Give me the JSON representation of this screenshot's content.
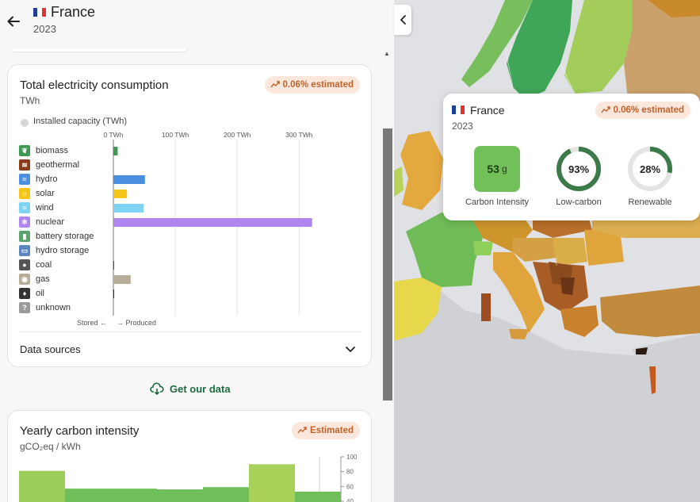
{
  "header": {
    "country": "France",
    "year": "2023"
  },
  "consumption_card": {
    "title": "Total electricity consumption",
    "unit": "TWh",
    "badge": "0.06% estimated",
    "installed_capacity_label": "Installed capacity (TWh)",
    "stored_label": "Stored",
    "produced_label": "Produced",
    "data_sources_label": "Data sources"
  },
  "get_data_label": "Get our data",
  "yearly_card": {
    "title": "Yearly carbon intensity",
    "unit": "gCO₂eq / kWh",
    "badge": "Estimated"
  },
  "tooltip": {
    "country": "France",
    "year": "2023",
    "badge": "0.06% estimated",
    "carbon_intensity_value": "53",
    "carbon_intensity_unit": "g",
    "carbon_intensity_label": "Carbon Intensity",
    "low_carbon_value": "93%",
    "low_carbon_fraction": 0.93,
    "low_carbon_label": "Low-carbon",
    "renewable_value": "28%",
    "renewable_fraction": 0.28,
    "renewable_label": "Renewable"
  },
  "colors": {
    "accent_green": "#1d6b3f",
    "badge_bg": "#fbe7dc",
    "badge_text": "#c0622a",
    "carbon_intensity_box": "#72c05a"
  },
  "chart_data": [
    {
      "type": "bar",
      "title": "Total electricity consumption",
      "xlabel": "TWh",
      "xlim": [
        0,
        400
      ],
      "x_ticks": [
        "0 TWh",
        "100 TWh",
        "200 TWh",
        "300 TWh"
      ],
      "x_tick_values": [
        0,
        100,
        200,
        300
      ],
      "categories": [
        "biomass",
        "geothermal",
        "hydro",
        "solar",
        "wind",
        "nuclear",
        "battery storage",
        "hydro storage",
        "coal",
        "gas",
        "oil",
        "unknown"
      ],
      "values": [
        7,
        0,
        51,
        22,
        49,
        321,
        0,
        0,
        1,
        28,
        1,
        0
      ],
      "colors": [
        "#3e9a52",
        "#8a3b1a",
        "#4a8fe0",
        "#f5c518",
        "#7fd4f4",
        "#b185f0",
        "#5aa36a",
        "#5a87c0",
        "#555555",
        "#b8ad98",
        "#333333",
        "#9a9a9a"
      ],
      "icons": [
        "leaf-icon",
        "geothermal-icon",
        "water-icon",
        "sun-icon",
        "wind-icon",
        "atom-icon",
        "battery-icon",
        "hydro-storage-icon",
        "coal-icon",
        "gas-icon",
        "oil-icon",
        "question-icon"
      ]
    },
    {
      "type": "bar",
      "title": "Yearly carbon intensity",
      "ylabel": "gCO₂eq / kWh",
      "ylim": [
        40,
        100
      ],
      "y_ticks": [
        "100",
        "80",
        "60",
        "40"
      ],
      "y_tick_values": [
        100,
        80,
        60,
        40
      ],
      "values": [
        81,
        57,
        57,
        56,
        59,
        90,
        53
      ],
      "colors": [
        "#9ccc5a",
        "#6ebf5a",
        "#6ebf5a",
        "#6ebf5a",
        "#6ebf5a",
        "#a8d15a",
        "#6ebf5a"
      ]
    }
  ]
}
